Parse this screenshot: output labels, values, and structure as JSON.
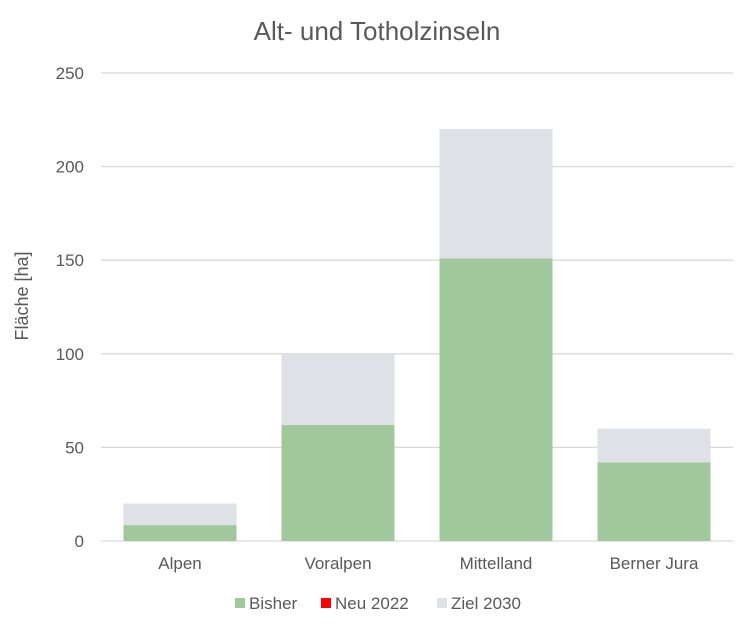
{
  "chart_data": {
    "type": "bar",
    "stacked": true,
    "title": "Alt- und Totholzinseln",
    "xlabel": "",
    "ylabel": "Fläche [ha]",
    "ylim": [
      0,
      250
    ],
    "yticks": [
      "0",
      "50",
      "100",
      "150",
      "200",
      "250"
    ],
    "grid": true,
    "legend_position": "bottom",
    "categories": [
      "Alpen",
      "Voralpen",
      "Mittelland",
      "Berner Jura"
    ],
    "series": [
      {
        "name": "Bisher",
        "color": "#a1c79d",
        "values": [
          8.5,
          62,
          151,
          42
        ]
      },
      {
        "name": "Neu 2022",
        "color": "#ff0000",
        "values": [
          0,
          0,
          0,
          0
        ]
      },
      {
        "name": "Ziel 2030",
        "color": "#dee1e5",
        "values": [
          11.5,
          38,
          69,
          18
        ]
      }
    ]
  }
}
